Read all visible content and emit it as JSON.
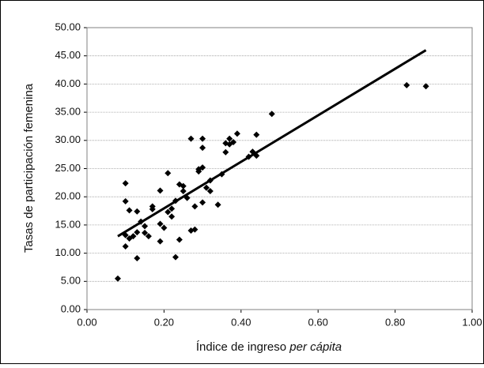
{
  "chart_data": {
    "type": "scatter",
    "ylabel": "Tasas de participación femenina",
    "xlabel": "Índice de ingreso",
    "xlabel_italic": "per cápita",
    "color": "#000000",
    "grid": true,
    "xlim": [
      0,
      1
    ],
    "ylim": [
      0,
      50
    ],
    "xticks": [
      {
        "value": 0,
        "label": "0.00"
      },
      {
        "value": 0.2,
        "label": "0.20"
      },
      {
        "value": 0.4,
        "label": "0.40"
      },
      {
        "value": 0.6,
        "label": "0.60"
      },
      {
        "value": 0.8,
        "label": "0.80"
      },
      {
        "value": 1,
        "label": "1.00"
      }
    ],
    "yticks": [
      {
        "value": 0,
        "label": "0.00"
      },
      {
        "value": 5,
        "label": "5.00"
      },
      {
        "value": 10,
        "label": "10.00"
      },
      {
        "value": 15,
        "label": "15.00"
      },
      {
        "value": 20,
        "label": "20.00"
      },
      {
        "value": 25,
        "label": "25.00"
      },
      {
        "value": 30,
        "label": "30.00"
      },
      {
        "value": 35,
        "label": "35.00"
      },
      {
        "value": 40,
        "label": "40.00"
      },
      {
        "value": 45,
        "label": "45.00"
      },
      {
        "value": 50,
        "label": "50.00"
      }
    ],
    "x": [
      0.08,
      0.1,
      0.1,
      0.11,
      0.13,
      0.1,
      0.11,
      0.12,
      0.1,
      0.13,
      0.13,
      0.14,
      0.15,
      0.15,
      0.16,
      0.17,
      0.17,
      0.19,
      0.19,
      0.19,
      0.2,
      0.21,
      0.21,
      0.22,
      0.22,
      0.23,
      0.23,
      0.24,
      0.24,
      0.25,
      0.25,
      0.26,
      0.27,
      0.27,
      0.28,
      0.28,
      0.29,
      0.29,
      0.3,
      0.3,
      0.3,
      0.3,
      0.31,
      0.32,
      0.32,
      0.34,
      0.35,
      0.36,
      0.36,
      0.37,
      0.37,
      0.38,
      0.39,
      0.42,
      0.43,
      0.44,
      0.44,
      0.48,
      0.83,
      0.88
    ],
    "values": [
      5.5,
      22.4,
      19.2,
      17.6,
      17.4,
      13.2,
      12.6,
      13.0,
      11.2,
      9.1,
      13.7,
      15.6,
      14.8,
      13.6,
      13.0,
      18.3,
      17.8,
      21.1,
      15.2,
      12.1,
      14.5,
      17.3,
      24.2,
      16.5,
      17.9,
      9.3,
      19.3,
      12.4,
      22.2,
      21.9,
      21.0,
      19.8,
      30.3,
      14.0,
      14.2,
      18.3,
      24.5,
      24.9,
      30.3,
      28.7,
      25.2,
      19.0,
      21.6,
      21.0,
      22.9,
      18.6,
      24.0,
      29.5,
      27.9,
      30.3,
      29.3,
      29.7,
      31.2,
      27.1,
      28.0,
      31.0,
      27.3,
      34.7,
      39.8,
      39.6
    ],
    "trendline": {
      "x": [
        0.08,
        0.88
      ],
      "y": [
        13,
        46
      ]
    }
  }
}
